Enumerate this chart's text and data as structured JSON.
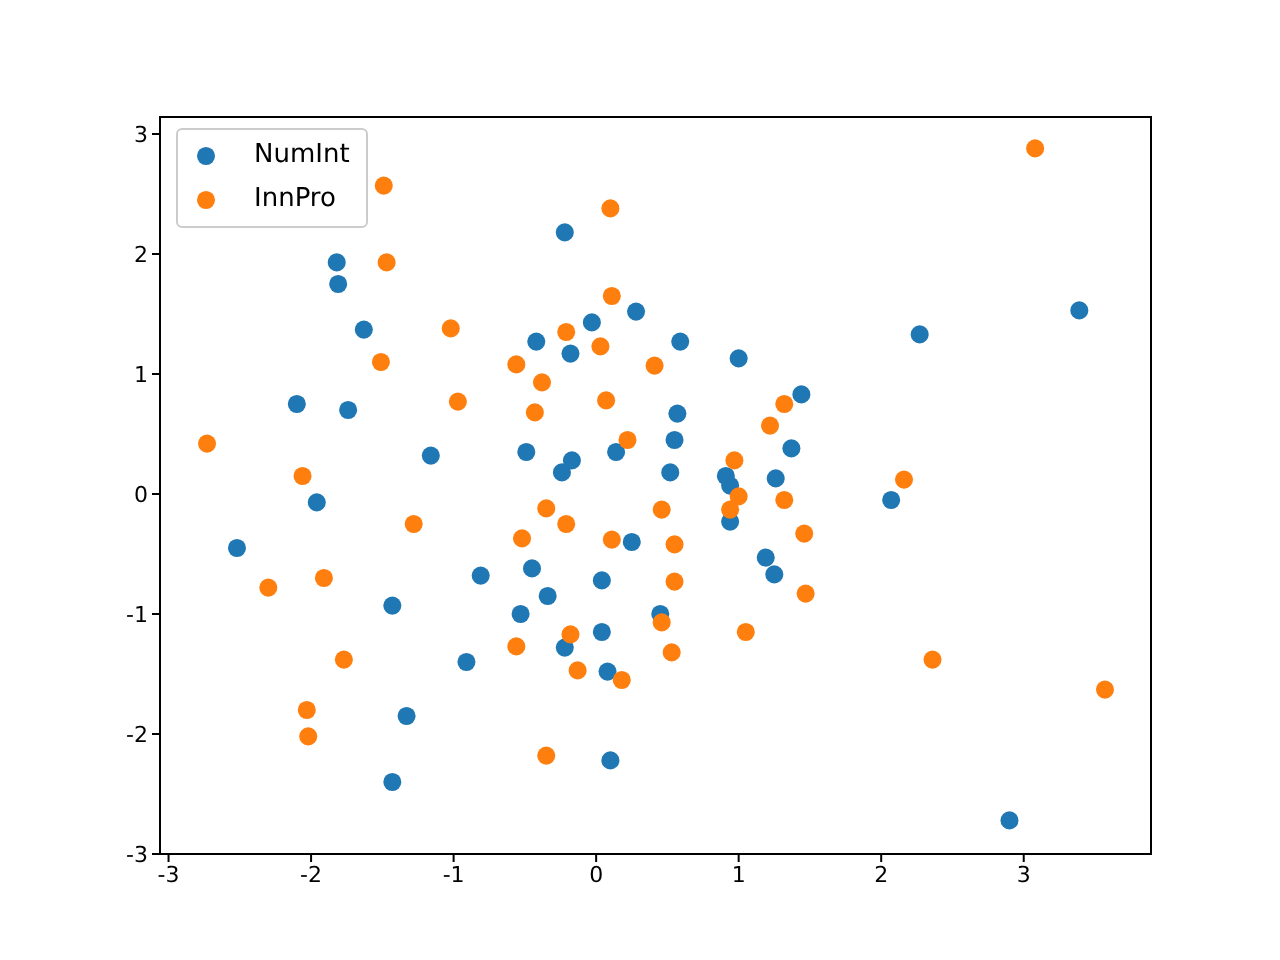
{
  "chart_data": {
    "type": "scatter",
    "xlim": [
      -3.06,
      3.9
    ],
    "ylim": [
      -3.0,
      3.15
    ],
    "xticks": [
      -3,
      -2,
      -1,
      0,
      1,
      2,
      3
    ],
    "yticks": [
      -3,
      -2,
      -1,
      0,
      1,
      2,
      3
    ],
    "legend": "top left",
    "marker": "circle",
    "series": [
      {
        "name": "NumInt",
        "color": "#1f77b4",
        "x": [
          -2.52,
          -2.1,
          -1.96,
          -1.82,
          -1.81,
          -1.74,
          -1.63,
          -1.43,
          -1.43,
          -1.33,
          -1.16,
          -0.91,
          -0.81,
          -0.22,
          -0.53,
          -0.49,
          -0.45,
          -0.42,
          -0.34,
          -0.24,
          -0.22,
          -0.18,
          -0.17,
          -0.03,
          0.04,
          0.04,
          0.08,
          0.1,
          0.14,
          0.25,
          0.28,
          0.43,
          0.45,
          0.52,
          0.55,
          0.57,
          0.59,
          0.91,
          0.94,
          0.94,
          1.0,
          1.19,
          1.25,
          1.26,
          1.37,
          1.44,
          2.07,
          2.27,
          2.9,
          3.39
        ],
        "values": [
          -0.45,
          0.75,
          -0.07,
          1.93,
          1.75,
          0.7,
          1.37,
          -0.93,
          -2.4,
          -1.85,
          0.32,
          -1.4,
          -0.68,
          2.18,
          -1.0,
          0.35,
          -0.62,
          1.27,
          -0.85,
          0.18,
          -1.28,
          1.17,
          0.28,
          1.43,
          -0.72,
          -1.15,
          -1.48,
          -2.22,
          0.35,
          -0.4,
          1.52,
          null,
          -1.0,
          0.18,
          0.45,
          0.67,
          1.27,
          0.15,
          0.07,
          -0.23,
          1.13,
          -0.53,
          -0.67,
          0.13,
          0.38,
          0.83,
          -0.05,
          1.33,
          -2.72,
          1.53
        ]
      },
      {
        "name": "InnPro",
        "color": "#ff7f0e",
        "x": [
          -2.73,
          -2.3,
          -2.06,
          -2.03,
          -2.02,
          -1.91,
          -1.77,
          -1.51,
          -1.49,
          -1.47,
          -1.28,
          -1.02,
          -0.97,
          -0.56,
          -0.56,
          -0.52,
          -0.43,
          -0.38,
          -0.35,
          -0.35,
          -0.21,
          -0.21,
          -0.18,
          -0.13,
          0.03,
          0.07,
          0.1,
          0.11,
          0.11,
          0.18,
          0.22,
          0.41,
          0.46,
          0.46,
          0.55,
          0.55,
          0.53,
          0.94,
          0.97,
          1.0,
          1.05,
          1.22,
          1.32,
          1.32,
          1.46,
          1.47,
          2.16,
          2.36,
          3.08,
          3.57
        ],
        "values": [
          0.42,
          -0.78,
          0.15,
          -1.8,
          -2.02,
          -0.7,
          -1.38,
          1.1,
          2.57,
          1.93,
          -0.25,
          1.38,
          0.77,
          1.08,
          -1.27,
          -0.37,
          0.68,
          0.93,
          -0.12,
          -2.18,
          -0.25,
          1.35,
          -1.17,
          -1.47,
          1.23,
          0.78,
          2.38,
          1.65,
          -0.38,
          -1.55,
          0.45,
          1.07,
          -0.13,
          -1.07,
          -0.42,
          -0.73,
          -1.32,
          -0.13,
          0.28,
          -0.02,
          -1.15,
          0.57,
          0.75,
          -0.05,
          -0.33,
          -0.83,
          0.12,
          -1.38,
          2.88,
          -1.63
        ]
      }
    ]
  }
}
